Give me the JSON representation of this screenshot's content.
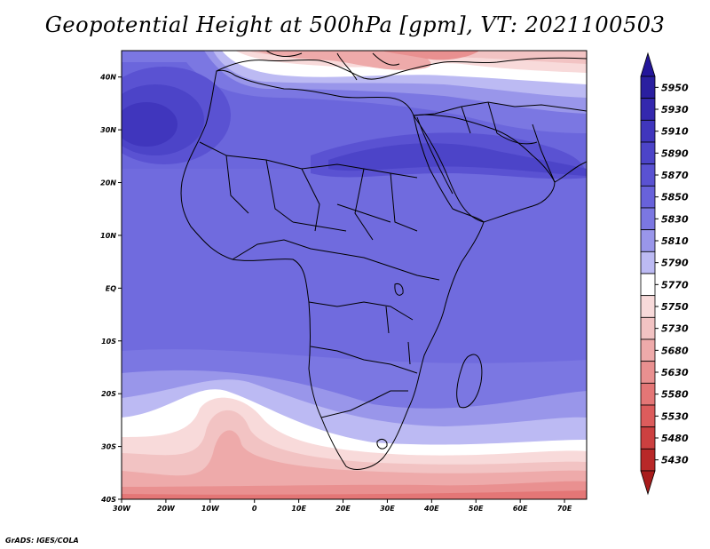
{
  "title": "Geopotential Height at 500hPa [gpm], VT: 2021100503",
  "credit": "GrADS: IGES/COLA",
  "map": {
    "projection": "latlon",
    "lon_range": [
      -30,
      75
    ],
    "lat_range": [
      -40,
      45
    ],
    "lon_ticks": [
      {
        "value": -30,
        "label": "30W"
      },
      {
        "value": -20,
        "label": "20W"
      },
      {
        "value": -10,
        "label": "10W"
      },
      {
        "value": 0,
        "label": "0"
      },
      {
        "value": 10,
        "label": "10E"
      },
      {
        "value": 20,
        "label": "20E"
      },
      {
        "value": 30,
        "label": "30E"
      },
      {
        "value": 40,
        "label": "40E"
      },
      {
        "value": 50,
        "label": "50E"
      },
      {
        "value": 60,
        "label": "60E"
      },
      {
        "value": 70,
        "label": "70E"
      }
    ],
    "lat_ticks": [
      {
        "value": 40,
        "label": "40N"
      },
      {
        "value": 30,
        "label": "30N"
      },
      {
        "value": 20,
        "label": "20N"
      },
      {
        "value": 10,
        "label": "10N"
      },
      {
        "value": 0,
        "label": "EQ"
      },
      {
        "value": -10,
        "label": "10S"
      },
      {
        "value": -20,
        "label": "20S"
      },
      {
        "value": -30,
        "label": "30S"
      },
      {
        "value": -40,
        "label": "40S"
      }
    ]
  },
  "colorbar": {
    "levels": [
      {
        "label": "5950",
        "color": "#2a1fa0"
      },
      {
        "label": "5930",
        "color": "#3428ae"
      },
      {
        "label": "5910",
        "color": "#4036bd"
      },
      {
        "label": "5890",
        "color": "#4c44c8"
      },
      {
        "label": "5870",
        "color": "#5a52d2"
      },
      {
        "label": "5850",
        "color": "#6862db"
      },
      {
        "label": "5830",
        "color": "#7b77e2"
      },
      {
        "label": "5810",
        "color": "#9996ea"
      },
      {
        "label": "5790",
        "color": "#bcbaf3"
      },
      {
        "label": "5770",
        "color": "#ffffff"
      },
      {
        "label": "5750",
        "color": "#f8dada"
      },
      {
        "label": "5730",
        "color": "#f2c3c3"
      },
      {
        "label": "5680",
        "color": "#eeaaaa"
      },
      {
        "label": "5630",
        "color": "#e99090"
      },
      {
        "label": "5580",
        "color": "#e47676"
      },
      {
        "label": "5530",
        "color": "#dc5c5c"
      },
      {
        "label": "5480",
        "color": "#cc4040"
      },
      {
        "label": "5430",
        "color": "#b82828"
      }
    ],
    "top_cap_color": "#24169a",
    "bottom_cap_color": "#a81c1c"
  }
}
